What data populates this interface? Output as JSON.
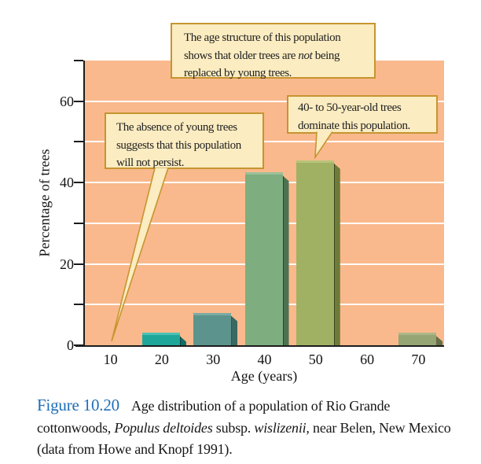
{
  "chart_data": {
    "type": "bar",
    "title": "",
    "xlabel": "Age (years)",
    "ylabel": "Percentage of trees",
    "categories": [
      "10",
      "20",
      "30",
      "40",
      "50",
      "60",
      "70"
    ],
    "values": [
      0,
      3,
      8,
      42.5,
      45.5,
      0,
      3
    ],
    "ylim": [
      0,
      70
    ],
    "ytick_labeled": [
      0,
      20,
      40,
      60
    ],
    "ytick_minor": [
      10,
      30,
      50,
      70
    ],
    "grid": {
      "horizontal_every": 10,
      "color": "#ffffff"
    },
    "legend": "none",
    "plot_bg": "#F9B98C",
    "axis_color": "#1c1c1c",
    "bar_colors": [
      "",
      "#1FA69B",
      "#5C948D",
      "#7EAD7F",
      "#A1B164",
      "",
      "#95A573"
    ],
    "bar_side_colors": [
      "",
      "#0F6E66",
      "#3A6862",
      "#4C7351",
      "#6F7B38",
      "",
      "#646F47"
    ],
    "bar_top_colors": [
      "",
      "#4CC0B4",
      "#7BABA3",
      "#9CC098",
      "#B7C47A",
      "",
      "#AAB687"
    ]
  },
  "annotations": {
    "box_fill": "#FBECC1",
    "box_border": "#C69530",
    "callout_top": {
      "text_before_italic": "The age structure of this population shows that older trees are ",
      "italic": "not",
      "text_after_italic": " being replaced by young trees."
    },
    "callout_right": {
      "text": "40- to 50-year-old trees dominate this population."
    },
    "callout_left": {
      "text": "The absence of young trees suggests that this population will not persist."
    }
  },
  "caption": {
    "figure_label": "Figure 10.20",
    "label_color": "#1D6EB7",
    "text_part1": "Age distribution of a population of Rio Grande cottonwoods, ",
    "italic1": "Populus deltoides",
    "text_part2": " subsp. ",
    "italic2": "wislizenii,",
    "text_part3": " near Belen, New Mexico (data from Howe and Knopf 1991)."
  }
}
